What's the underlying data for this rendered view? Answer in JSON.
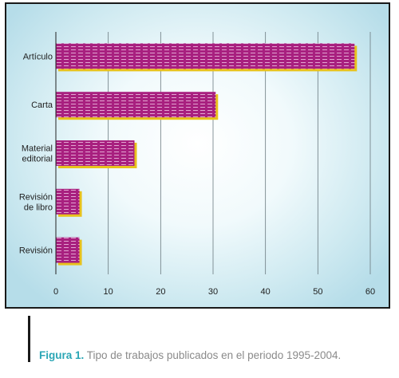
{
  "caption": {
    "label": "Figura 1.",
    "text": "Tipo de trabajos publicados en el periodo 1995-2004."
  },
  "colors": {
    "bar_fill": "#a8207f",
    "bar_stripe": "#e3a6d2",
    "bar_shadow": "#e8c21c",
    "caption_label": "#2aa6b5",
    "background_center": "#ffffff",
    "background_edge": "#b6dde9"
  },
  "chart_data": {
    "type": "bar",
    "orientation": "horizontal",
    "categories": [
      [
        "Artículo"
      ],
      [
        "Carta"
      ],
      [
        "Material",
        "editorial"
      ],
      [
        "Revisión",
        "de libro"
      ],
      [
        "Revisión"
      ]
    ],
    "values": [
      57,
      30.5,
      15,
      4.5,
      4.5
    ],
    "xlim": [
      0,
      60
    ],
    "xticks": [
      0,
      10,
      20,
      30,
      40,
      50,
      60
    ],
    "grid": "vertical",
    "title": "",
    "xlabel": "",
    "ylabel": ""
  }
}
